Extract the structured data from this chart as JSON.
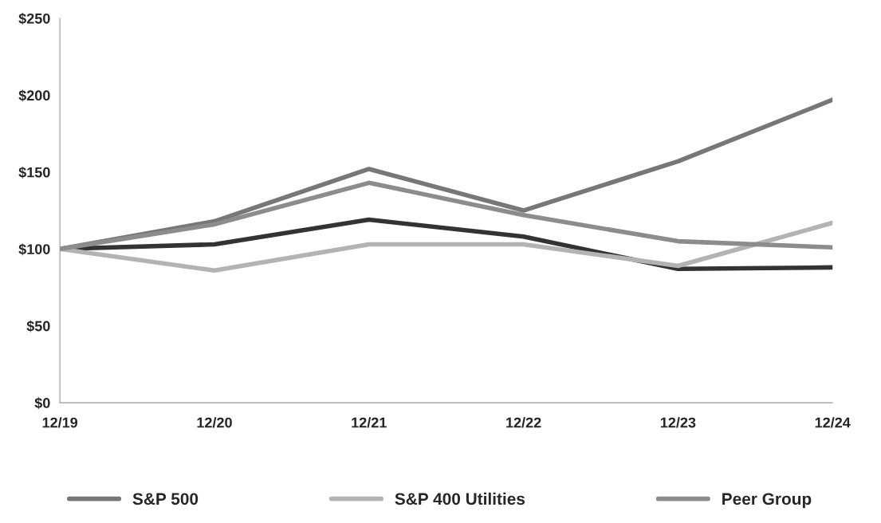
{
  "chart_data": {
    "type": "line",
    "categories": [
      "12/19",
      "12/20",
      "12/21",
      "12/22",
      "12/23",
      "12/24"
    ],
    "series": [
      {
        "color": "#333333",
        "values": [
          100,
          103,
          119,
          108,
          87,
          88
        ]
      },
      {
        "name": "S&P 500",
        "color": "#77777a",
        "values": [
          100,
          118,
          152,
          125,
          157,
          197
        ]
      },
      {
        "name": "S&P 400 Utilities",
        "color": "#b3b3b6",
        "values": [
          100,
          86,
          103,
          103,
          89,
          117
        ]
      },
      {
        "name": "Peer Group",
        "color": "#8c8c8f",
        "values": [
          100,
          116,
          143,
          122,
          105,
          101
        ]
      }
    ],
    "ylim": [
      0,
      250
    ],
    "yticks": [
      {
        "value": 0,
        "label": "$0"
      },
      {
        "value": 50,
        "label": "$50"
      },
      {
        "value": 100,
        "label": "$100"
      },
      {
        "value": 150,
        "label": "$150"
      },
      {
        "value": 200,
        "label": "$200"
      },
      {
        "value": 250,
        "label": "$250"
      }
    ],
    "grid": false,
    "legend": "bottom",
    "marker": "none",
    "line_style": "solid"
  }
}
